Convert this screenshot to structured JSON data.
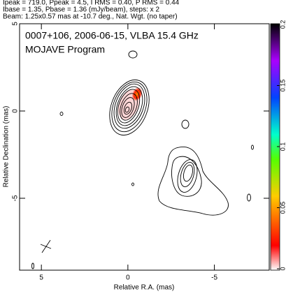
{
  "chart_data": {
    "type": "contour",
    "header": [
      "Ipeak = 719.0, Ppeak = 4.5, I RMS = 0.40, P RMS = 0.44",
      "Ibase = 1.35, Pbase = 1.36 (mJy/beam), steps: x 2",
      "Beam: 1.25x0.57 mas at -10.7 deg., Nat. Wgt. (no taper)"
    ],
    "annotations": [
      "0007+106, 2006-06-15, VLBA 15.4 GHz",
      "MOJAVE Program"
    ],
    "xlabel": "Relative R.A. (mas)",
    "ylabel": "Relative Declination (mas)",
    "xlim": [
      6.26,
      -8.17
    ],
    "xticks": [
      5,
      0,
      -5
    ],
    "ylim": [
      -9.12,
      5
    ],
    "yticks": [
      5,
      0,
      -5
    ],
    "cbar_lim": [
      0,
      0.2
    ],
    "cbar_ticks": [
      0,
      0.05,
      0.1,
      0.15,
      0.2
    ]
  }
}
